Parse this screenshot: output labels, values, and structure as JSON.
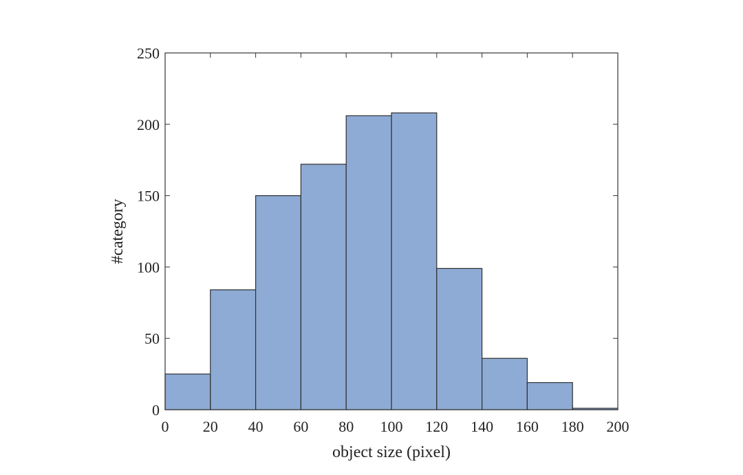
{
  "chart_data": {
    "type": "bar",
    "title": "",
    "xlabel": "object size (pixel)",
    "ylabel": "#category",
    "bins": [
      {
        "x0": 0,
        "x1": 20,
        "value": 25
      },
      {
        "x0": 20,
        "x1": 40,
        "value": 84
      },
      {
        "x0": 40,
        "x1": 60,
        "value": 150
      },
      {
        "x0": 60,
        "x1": 80,
        "value": 172
      },
      {
        "x0": 80,
        "x1": 100,
        "value": 206
      },
      {
        "x0": 100,
        "x1": 120,
        "value": 208
      },
      {
        "x0": 120,
        "x1": 140,
        "value": 99
      },
      {
        "x0": 140,
        "x1": 160,
        "value": 36
      },
      {
        "x0": 160,
        "x1": 180,
        "value": 19
      },
      {
        "x0": 180,
        "x1": 200,
        "value": 1
      }
    ],
    "xlim": [
      0,
      200
    ],
    "ylim": [
      0,
      250
    ],
    "xticks": [
      "0",
      "20",
      "40",
      "60",
      "80",
      "100",
      "120",
      "140",
      "160",
      "180",
      "200"
    ],
    "yticks": [
      "0",
      "50",
      "100",
      "150",
      "200",
      "250"
    ],
    "grid": false,
    "bar_color": "#8eabd5"
  }
}
